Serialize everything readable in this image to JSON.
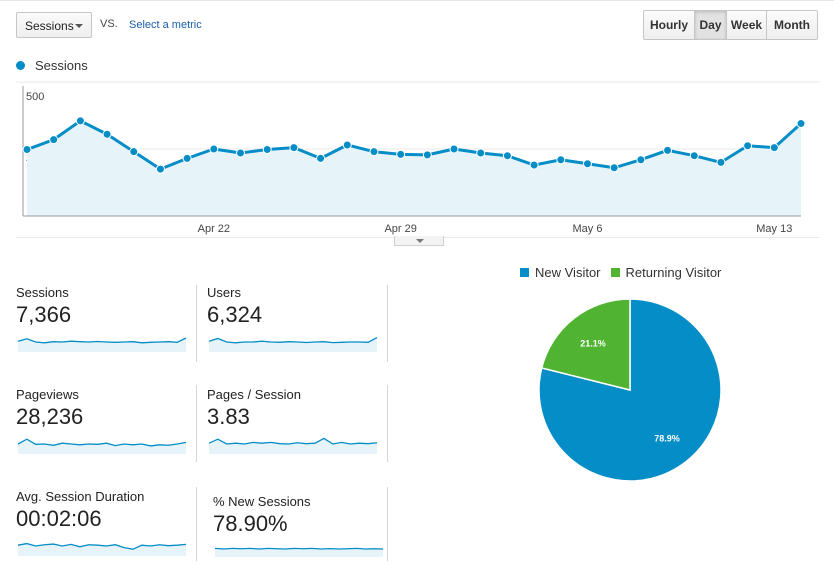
{
  "toolbar": {
    "metric_select_label": "Sessions",
    "vs_label": "VS.",
    "select_metric_link": "Select a metric",
    "granularity": [
      {
        "label": "Hourly",
        "active": false
      },
      {
        "label": "Day",
        "active": true
      },
      {
        "label": "Week",
        "active": false
      },
      {
        "label": "Month",
        "active": false
      }
    ]
  },
  "colors": {
    "accent": "#058dc7",
    "area_fill": "#e6f4fa",
    "grid": "#e8e8e8",
    "returning": "#50b432"
  },
  "chart_data": [
    {
      "type": "line",
      "series": [
        {
          "name": "Sessions",
          "values": [
            248,
            285,
            355,
            305,
            240,
            175,
            215,
            250,
            235,
            248,
            255,
            215,
            265,
            240,
            230,
            228,
            250,
            235,
            225,
            190,
            210,
            195,
            180,
            210,
            245,
            225,
            200,
            262,
            255,
            345
          ]
        }
      ],
      "x": [
        "Apr 15",
        "Apr 16",
        "Apr 17",
        "Apr 18",
        "Apr 19",
        "Apr 20",
        "Apr 21",
        "Apr 22",
        "Apr 23",
        "Apr 24",
        "Apr 25",
        "Apr 26",
        "Apr 27",
        "Apr 28",
        "Apr 29",
        "Apr 30",
        "May 1",
        "May 2",
        "May 3",
        "May 4",
        "May 5",
        "May 6",
        "May 7",
        "May 8",
        "May 9",
        "May 10",
        "May 11",
        "May 12",
        "May 13",
        "May 14"
      ],
      "x_ticks": [
        "Apr 22",
        "Apr 29",
        "May 6",
        "May 13"
      ],
      "y_ticks": [
        250,
        500
      ],
      "ylim": [
        0,
        500
      ],
      "grid": true,
      "legend": "top-left"
    },
    {
      "type": "pie",
      "categories": [
        "New Visitor",
        "Returning Visitor"
      ],
      "values": [
        78.9,
        21.1
      ],
      "value_labels": [
        "78.9%",
        "21.1%"
      ],
      "colors": [
        "#058dc7",
        "#50b432"
      ],
      "legend": "top"
    }
  ],
  "metrics": [
    {
      "label": "Sessions",
      "value": "7,366",
      "spark": [
        0.55,
        0.7,
        0.5,
        0.45,
        0.52,
        0.5,
        0.55,
        0.52,
        0.5,
        0.53,
        0.5,
        0.48,
        0.5,
        0.52,
        0.45,
        0.48,
        0.5,
        0.52,
        0.48,
        0.75
      ]
    },
    {
      "label": "Users",
      "value": "6,324",
      "spark": [
        0.55,
        0.72,
        0.5,
        0.45,
        0.5,
        0.5,
        0.55,
        0.5,
        0.48,
        0.52,
        0.5,
        0.47,
        0.5,
        0.52,
        0.46,
        0.48,
        0.5,
        0.5,
        0.48,
        0.78
      ]
    },
    {
      "label": "Pageviews",
      "value": "28,236",
      "spark": [
        0.5,
        0.8,
        0.48,
        0.5,
        0.42,
        0.55,
        0.5,
        0.45,
        0.5,
        0.48,
        0.55,
        0.4,
        0.5,
        0.45,
        0.5,
        0.38,
        0.45,
        0.42,
        0.5,
        0.6
      ]
    },
    {
      "label": "Pages / Session",
      "value": "3.83",
      "spark": [
        0.55,
        0.8,
        0.5,
        0.55,
        0.5,
        0.6,
        0.55,
        0.6,
        0.52,
        0.5,
        0.58,
        0.52,
        0.55,
        0.85,
        0.5,
        0.6,
        0.5,
        0.55,
        0.52,
        0.58
      ]
    },
    {
      "label": "Avg. Session Duration",
      "value": "00:02:06",
      "spark": [
        0.55,
        0.65,
        0.5,
        0.58,
        0.62,
        0.5,
        0.6,
        0.45,
        0.58,
        0.55,
        0.5,
        0.58,
        0.4,
        0.3,
        0.55,
        0.5,
        0.58,
        0.52,
        0.55,
        0.6
      ]
    },
    {
      "label": "% New Sessions",
      "value": "78.90%",
      "spark": [
        0.55,
        0.5,
        0.55,
        0.52,
        0.55,
        0.5,
        0.55,
        0.52,
        0.5,
        0.55,
        0.52,
        0.55,
        0.5,
        0.53,
        0.5,
        0.52,
        0.55,
        0.5,
        0.52,
        0.5
      ]
    }
  ]
}
